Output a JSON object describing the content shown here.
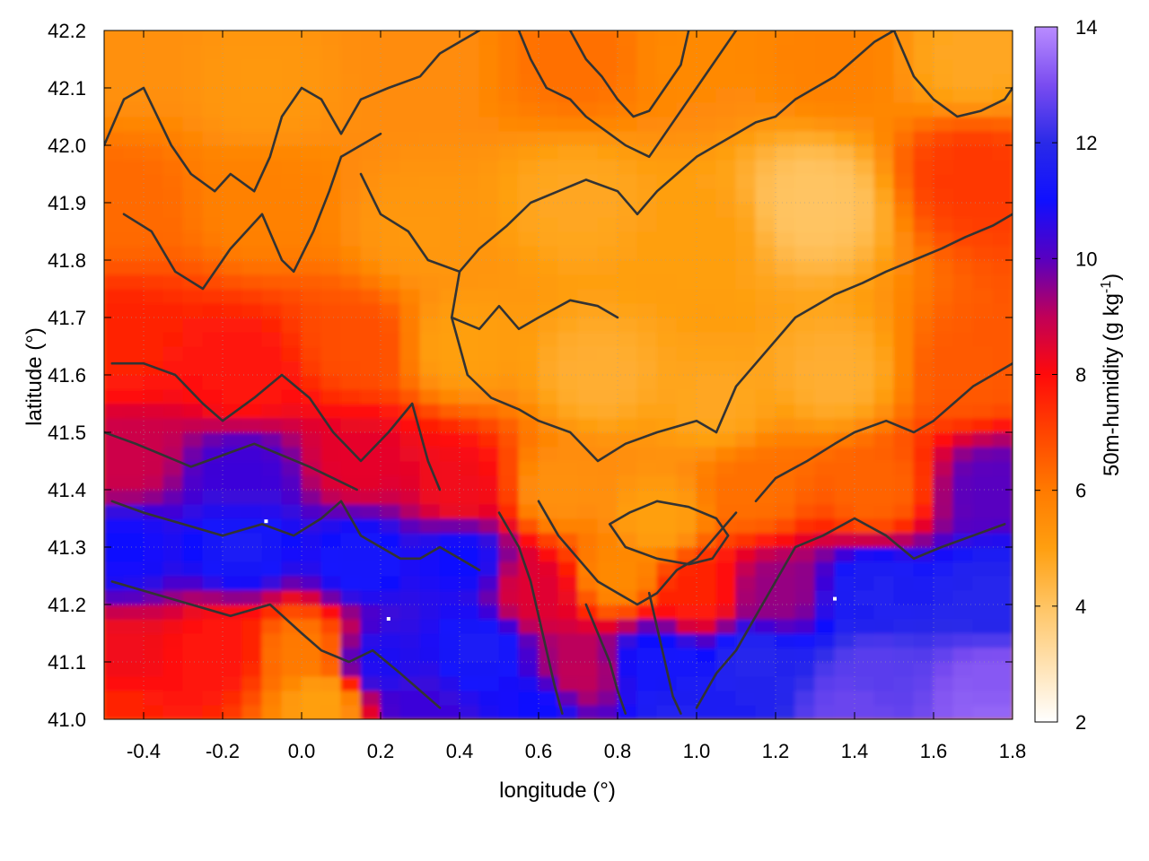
{
  "chart_data": {
    "type": "heatmap",
    "xlabel": "longitude (°)",
    "ylabel": "latitude (°)",
    "colorbar_label": "50m-humidity (g kg",
    "colorbar_label_sup": "-1",
    "colorbar_label_end": ")",
    "xlim": [
      -0.5,
      1.8
    ],
    "ylim": [
      41.0,
      42.2
    ],
    "zlim": [
      2,
      14
    ],
    "x_ticks": [
      -0.4,
      -0.2,
      0.0,
      0.2,
      0.4,
      0.6,
      0.8,
      1.0,
      1.2,
      1.4,
      1.6,
      1.8
    ],
    "x_tick_labels": [
      "-0.4",
      "-0.2",
      "0.0",
      "0.2",
      "0.4",
      "0.6",
      "0.8",
      "1.0",
      "1.2",
      "1.4",
      "1.6",
      "1.8"
    ],
    "y_ticks": [
      41.0,
      41.1,
      41.2,
      41.3,
      41.4,
      41.5,
      41.6,
      41.7,
      41.8,
      41.9,
      42.0,
      42.1,
      42.2
    ],
    "y_tick_labels": [
      "41.0",
      "41.1",
      "41.2",
      "41.3",
      "41.4",
      "41.5",
      "41.6",
      "41.7",
      "41.8",
      "41.9",
      "42.0",
      "42.1",
      "42.2"
    ],
    "colorbar_ticks": [
      2,
      4,
      6,
      8,
      10,
      12,
      14
    ],
    "colorbar_tick_labels": [
      "2",
      "4",
      "6",
      "8",
      "10",
      "12",
      "14"
    ],
    "colormap": [
      {
        "value": 2,
        "color": "#ffffff"
      },
      {
        "value": 4,
        "color": "#ffc463"
      },
      {
        "value": 5,
        "color": "#ff9f10"
      },
      {
        "value": 6,
        "color": "#ff7a00"
      },
      {
        "value": 7,
        "color": "#ff4400"
      },
      {
        "value": 8,
        "color": "#ff0a0a"
      },
      {
        "value": 9,
        "color": "#c00058"
      },
      {
        "value": 10,
        "color": "#5800c0"
      },
      {
        "value": 11,
        "color": "#1010ff"
      },
      {
        "value": 12,
        "color": "#2a2ae8"
      },
      {
        "value": 13,
        "color": "#7a4cf0"
      },
      {
        "value": 14,
        "color": "#b98cff"
      }
    ],
    "grid": true,
    "field_anchors": [
      {
        "lon": -0.45,
        "lat": 42.15,
        "value": 5.4
      },
      {
        "lon": -0.1,
        "lat": 42.1,
        "value": 5.2
      },
      {
        "lon": 0.3,
        "lat": 42.15,
        "value": 5.5
      },
      {
        "lon": 0.7,
        "lat": 42.15,
        "value": 6.2
      },
      {
        "lon": 1.0,
        "lat": 42.15,
        "value": 5.6
      },
      {
        "lon": 1.35,
        "lat": 42.15,
        "value": 5.8
      },
      {
        "lon": 1.7,
        "lat": 42.15,
        "value": 4.8
      },
      {
        "lon": -0.45,
        "lat": 41.9,
        "value": 6.3
      },
      {
        "lon": -0.1,
        "lat": 41.9,
        "value": 5.8
      },
      {
        "lon": 0.3,
        "lat": 41.85,
        "value": 5.2
      },
      {
        "lon": 0.7,
        "lat": 41.9,
        "value": 4.8
      },
      {
        "lon": 1.0,
        "lat": 41.85,
        "value": 5.0
      },
      {
        "lon": 1.3,
        "lat": 41.9,
        "value": 4.0
      },
      {
        "lon": 1.7,
        "lat": 41.95,
        "value": 7.2
      },
      {
        "lon": -0.45,
        "lat": 41.65,
        "value": 7.6
      },
      {
        "lon": -0.15,
        "lat": 41.6,
        "value": 7.8
      },
      {
        "lon": 0.15,
        "lat": 41.65,
        "value": 6.8
      },
      {
        "lon": 0.4,
        "lat": 41.65,
        "value": 5.0
      },
      {
        "lon": 0.75,
        "lat": 41.6,
        "value": 4.6
      },
      {
        "lon": 1.05,
        "lat": 41.55,
        "value": 4.8
      },
      {
        "lon": 1.35,
        "lat": 41.6,
        "value": 4.6
      },
      {
        "lon": 1.7,
        "lat": 41.6,
        "value": 6.6
      },
      {
        "lon": -0.45,
        "lat": 41.45,
        "value": 8.8
      },
      {
        "lon": -0.15,
        "lat": 41.42,
        "value": 10.4
      },
      {
        "lon": 0.15,
        "lat": 41.45,
        "value": 8.4
      },
      {
        "lon": 0.4,
        "lat": 41.4,
        "value": 8.2
      },
      {
        "lon": 0.65,
        "lat": 41.4,
        "value": 5.4
      },
      {
        "lon": 0.9,
        "lat": 41.35,
        "value": 5.0
      },
      {
        "lon": 1.15,
        "lat": 41.4,
        "value": 6.2
      },
      {
        "lon": 1.45,
        "lat": 41.4,
        "value": 6.4
      },
      {
        "lon": 1.75,
        "lat": 41.4,
        "value": 10.0
      },
      {
        "lon": -0.45,
        "lat": 41.3,
        "value": 11.0
      },
      {
        "lon": -0.15,
        "lat": 41.3,
        "value": 11.4
      },
      {
        "lon": 0.15,
        "lat": 41.28,
        "value": 11.2
      },
      {
        "lon": 0.4,
        "lat": 41.28,
        "value": 11.0
      },
      {
        "lon": 0.6,
        "lat": 41.22,
        "value": 8.5
      },
      {
        "lon": 0.8,
        "lat": 41.25,
        "value": 5.6
      },
      {
        "lon": 1.0,
        "lat": 41.22,
        "value": 7.6
      },
      {
        "lon": 1.2,
        "lat": 41.22,
        "value": 9.4
      },
      {
        "lon": 1.45,
        "lat": 41.22,
        "value": 11.6
      },
      {
        "lon": 1.75,
        "lat": 41.22,
        "value": 11.8
      },
      {
        "lon": -0.45,
        "lat": 41.1,
        "value": 8.2
      },
      {
        "lon": -0.2,
        "lat": 41.12,
        "value": 7.8
      },
      {
        "lon": 0.0,
        "lat": 41.12,
        "value": 6.0
      },
      {
        "lon": 0.2,
        "lat": 41.1,
        "value": 10.8
      },
      {
        "lon": 0.45,
        "lat": 41.12,
        "value": 11.4
      },
      {
        "lon": 0.7,
        "lat": 41.08,
        "value": 9.0
      },
      {
        "lon": 0.9,
        "lat": 41.1,
        "value": 11.2
      },
      {
        "lon": 1.15,
        "lat": 41.1,
        "value": 11.8
      },
      {
        "lon": 1.45,
        "lat": 41.08,
        "value": 12.6
      },
      {
        "lon": 1.75,
        "lat": 41.05,
        "value": 13.2
      },
      {
        "lon": -0.45,
        "lat": 41.02,
        "value": 7.6
      },
      {
        "lon": 0.05,
        "lat": 41.03,
        "value": 5.0
      },
      {
        "lon": 0.3,
        "lat": 41.02,
        "value": 10.4
      },
      {
        "lon": 0.6,
        "lat": 41.02,
        "value": 11.0
      },
      {
        "lon": 0.95,
        "lat": 41.02,
        "value": 11.6
      },
      {
        "lon": 1.4,
        "lat": 41.02,
        "value": 12.8
      },
      {
        "lon": 1.75,
        "lat": 41.02,
        "value": 13.4
      }
    ],
    "contour_lines": [
      [
        [
          -0.5,
          42.0
        ],
        [
          -0.45,
          42.08
        ],
        [
          -0.4,
          42.1
        ],
        [
          -0.33,
          42.0
        ],
        [
          -0.28,
          41.95
        ],
        [
          -0.22,
          41.92
        ],
        [
          -0.18,
          41.95
        ],
        [
          -0.12,
          41.92
        ],
        [
          -0.08,
          41.98
        ],
        [
          -0.05,
          42.05
        ],
        [
          0.0,
          42.1
        ],
        [
          0.05,
          42.08
        ],
        [
          0.1,
          42.02
        ],
        [
          0.15,
          42.08
        ],
        [
          0.22,
          42.1
        ],
        [
          0.3,
          42.12
        ],
        [
          0.35,
          42.16
        ],
        [
          0.4,
          42.18
        ],
        [
          0.45,
          42.2
        ]
      ],
      [
        [
          -0.45,
          41.88
        ],
        [
          -0.38,
          41.85
        ],
        [
          -0.32,
          41.78
        ],
        [
          -0.25,
          41.75
        ],
        [
          -0.18,
          41.82
        ],
        [
          -0.1,
          41.88
        ],
        [
          -0.05,
          41.8
        ],
        [
          -0.02,
          41.78
        ],
        [
          0.03,
          41.85
        ],
        [
          0.07,
          41.92
        ],
        [
          0.1,
          41.98
        ],
        [
          0.15,
          42.0
        ],
        [
          0.2,
          42.02
        ]
      ],
      [
        [
          0.15,
          41.95
        ],
        [
          0.2,
          41.88
        ],
        [
          0.27,
          41.85
        ],
        [
          0.32,
          41.8
        ],
        [
          0.4,
          41.78
        ],
        [
          0.45,
          41.82
        ],
        [
          0.52,
          41.86
        ],
        [
          0.58,
          41.9
        ],
        [
          0.65,
          41.92
        ],
        [
          0.72,
          41.94
        ],
        [
          0.8,
          41.92
        ],
        [
          0.85,
          41.88
        ]
      ],
      [
        [
          0.4,
          41.78
        ],
        [
          0.38,
          41.7
        ],
        [
          0.45,
          41.68
        ],
        [
          0.5,
          41.72
        ],
        [
          0.55,
          41.68
        ],
        [
          0.6,
          41.7
        ],
        [
          0.68,
          41.73
        ],
        [
          0.75,
          41.72
        ],
        [
          0.8,
          41.7
        ]
      ],
      [
        [
          0.38,
          41.7
        ],
        [
          0.42,
          41.6
        ],
        [
          0.48,
          41.56
        ],
        [
          0.55,
          41.54
        ],
        [
          0.6,
          41.52
        ],
        [
          0.68,
          41.5
        ],
        [
          0.75,
          41.45
        ],
        [
          0.82,
          41.48
        ],
        [
          0.9,
          41.5
        ],
        [
          1.0,
          41.52
        ],
        [
          1.05,
          41.5
        ]
      ],
      [
        [
          -0.48,
          41.62
        ],
        [
          -0.4,
          41.62
        ],
        [
          -0.32,
          41.6
        ],
        [
          -0.25,
          41.55
        ],
        [
          -0.2,
          41.52
        ],
        [
          -0.12,
          41.56
        ],
        [
          -0.05,
          41.6
        ],
        [
          0.02,
          41.56
        ],
        [
          0.08,
          41.5
        ],
        [
          0.15,
          41.45
        ],
        [
          0.22,
          41.5
        ],
        [
          0.28,
          41.55
        ],
        [
          0.32,
          41.45
        ],
        [
          0.35,
          41.4
        ]
      ],
      [
        [
          -0.48,
          41.38
        ],
        [
          -0.4,
          41.36
        ],
        [
          -0.3,
          41.34
        ],
        [
          -0.2,
          41.32
        ],
        [
          -0.1,
          41.34
        ],
        [
          -0.02,
          41.32
        ],
        [
          0.05,
          41.35
        ],
        [
          0.1,
          41.38
        ],
        [
          0.15,
          41.32
        ],
        [
          0.2,
          41.3
        ],
        [
          0.25,
          41.28
        ],
        [
          0.3,
          41.28
        ],
        [
          0.35,
          41.3
        ],
        [
          0.4,
          41.28
        ],
        [
          0.45,
          41.26
        ]
      ],
      [
        [
          -0.48,
          41.24
        ],
        [
          -0.38,
          41.22
        ],
        [
          -0.28,
          41.2
        ],
        [
          -0.18,
          41.18
        ],
        [
          -0.08,
          41.2
        ],
        [
          0.0,
          41.15
        ],
        [
          0.05,
          41.12
        ],
        [
          0.12,
          41.1
        ],
        [
          0.18,
          41.12
        ],
        [
          0.25,
          41.08
        ],
        [
          0.3,
          41.05
        ],
        [
          0.35,
          41.02
        ]
      ],
      [
        [
          0.5,
          41.36
        ],
        [
          0.55,
          41.3
        ],
        [
          0.58,
          41.24
        ],
        [
          0.6,
          41.18
        ],
        [
          0.62,
          41.12
        ],
        [
          0.64,
          41.06
        ],
        [
          0.66,
          41.01
        ]
      ],
      [
        [
          0.6,
          41.38
        ],
        [
          0.65,
          41.32
        ],
        [
          0.7,
          41.28
        ],
        [
          0.75,
          41.24
        ],
        [
          0.8,
          41.22
        ],
        [
          0.85,
          41.2
        ],
        [
          0.9,
          41.22
        ],
        [
          0.95,
          41.26
        ],
        [
          1.0,
          41.28
        ],
        [
          1.05,
          41.32
        ],
        [
          1.1,
          41.36
        ]
      ],
      [
        [
          0.78,
          41.34
        ],
        [
          0.83,
          41.36
        ],
        [
          0.9,
          41.38
        ],
        [
          0.98,
          41.37
        ],
        [
          1.05,
          41.35
        ],
        [
          1.08,
          41.32
        ],
        [
          1.04,
          41.28
        ],
        [
          0.98,
          41.27
        ],
        [
          0.9,
          41.28
        ],
        [
          0.82,
          41.3
        ],
        [
          0.78,
          41.34
        ]
      ],
      [
        [
          0.72,
          41.2
        ],
        [
          0.75,
          41.15
        ],
        [
          0.78,
          41.1
        ],
        [
          0.8,
          41.05
        ],
        [
          0.82,
          41.01
        ]
      ],
      [
        [
          0.88,
          41.22
        ],
        [
          0.9,
          41.16
        ],
        [
          0.92,
          41.1
        ],
        [
          0.94,
          41.04
        ],
        [
          0.96,
          41.01
        ]
      ],
      [
        [
          1.0,
          41.02
        ],
        [
          1.05,
          41.08
        ],
        [
          1.1,
          41.12
        ],
        [
          1.15,
          41.18
        ],
        [
          1.2,
          41.24
        ],
        [
          1.25,
          41.3
        ],
        [
          1.32,
          41.32
        ],
        [
          1.4,
          41.35
        ],
        [
          1.48,
          41.32
        ],
        [
          1.55,
          41.28
        ],
        [
          1.62,
          41.3
        ],
        [
          1.7,
          41.32
        ],
        [
          1.78,
          41.34
        ]
      ],
      [
        [
          1.15,
          41.38
        ],
        [
          1.2,
          41.42
        ],
        [
          1.28,
          41.45
        ],
        [
          1.35,
          41.48
        ],
        [
          1.4,
          41.5
        ],
        [
          1.48,
          41.52
        ],
        [
          1.55,
          41.5
        ],
        [
          1.6,
          41.52
        ],
        [
          1.65,
          41.55
        ],
        [
          1.7,
          41.58
        ],
        [
          1.75,
          41.6
        ],
        [
          1.8,
          41.62
        ]
      ],
      [
        [
          1.05,
          41.5
        ],
        [
          1.1,
          41.58
        ],
        [
          1.15,
          41.62
        ],
        [
          1.2,
          41.66
        ],
        [
          1.25,
          41.7
        ],
        [
          1.3,
          41.72
        ],
        [
          1.35,
          41.74
        ],
        [
          1.42,
          41.76
        ],
        [
          1.48,
          41.78
        ],
        [
          1.55,
          41.8
        ],
        [
          1.62,
          41.82
        ],
        [
          1.68,
          41.84
        ],
        [
          1.75,
          41.86
        ],
        [
          1.8,
          41.88
        ]
      ],
      [
        [
          0.85,
          41.88
        ],
        [
          0.9,
          41.92
        ],
        [
          0.95,
          41.95
        ],
        [
          1.0,
          41.98
        ],
        [
          1.05,
          42.0
        ],
        [
          1.1,
          42.02
        ],
        [
          1.15,
          42.04
        ],
        [
          1.2,
          42.05
        ],
        [
          1.25,
          42.08
        ],
        [
          1.3,
          42.1
        ],
        [
          1.35,
          42.12
        ],
        [
          1.4,
          42.15
        ],
        [
          1.45,
          42.18
        ],
        [
          1.5,
          42.2
        ]
      ],
      [
        [
          0.55,
          42.2
        ],
        [
          0.58,
          42.15
        ],
        [
          0.62,
          42.1
        ],
        [
          0.68,
          42.08
        ],
        [
          0.72,
          42.05
        ],
        [
          0.78,
          42.02
        ],
        [
          0.82,
          42.0
        ],
        [
          0.88,
          41.98
        ],
        [
          0.92,
          42.02
        ],
        [
          0.96,
          42.06
        ],
        [
          1.0,
          42.1
        ],
        [
          1.04,
          42.14
        ],
        [
          1.08,
          42.18
        ],
        [
          1.1,
          42.2
        ]
      ],
      [
        [
          0.68,
          42.2
        ],
        [
          0.72,
          42.15
        ],
        [
          0.76,
          42.12
        ],
        [
          0.8,
          42.08
        ],
        [
          0.84,
          42.05
        ],
        [
          0.88,
          42.06
        ],
        [
          0.92,
          42.1
        ],
        [
          0.96,
          42.14
        ],
        [
          0.98,
          42.2
        ]
      ],
      [
        [
          1.5,
          42.2
        ],
        [
          1.55,
          42.12
        ],
        [
          1.6,
          42.08
        ],
        [
          1.66,
          42.05
        ],
        [
          1.72,
          42.06
        ],
        [
          1.78,
          42.08
        ],
        [
          1.8,
          42.1
        ]
      ],
      [
        [
          -0.5,
          41.5
        ],
        [
          -0.42,
          41.48
        ],
        [
          -0.35,
          41.46
        ],
        [
          -0.28,
          41.44
        ],
        [
          -0.2,
          41.46
        ],
        [
          -0.12,
          41.48
        ],
        [
          -0.05,
          41.46
        ],
        [
          0.02,
          41.44
        ],
        [
          0.08,
          41.42
        ],
        [
          0.14,
          41.4
        ]
      ]
    ],
    "markers": [
      {
        "lon": 0.22,
        "lat": 41.175
      },
      {
        "lon": 1.35,
        "lat": 41.21
      },
      {
        "lon": -0.09,
        "lat": 41.345
      }
    ]
  }
}
